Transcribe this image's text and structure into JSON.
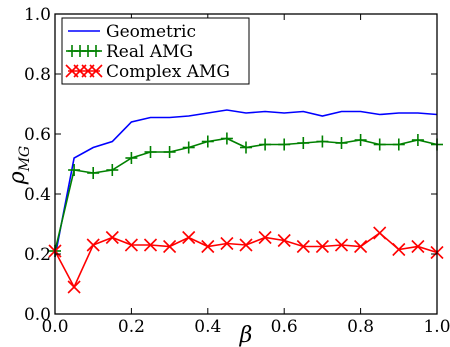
{
  "chart_data": {
    "type": "line",
    "x": [
      0.0,
      0.05,
      0.1,
      0.15,
      0.2,
      0.25,
      0.3,
      0.35,
      0.4,
      0.45,
      0.5,
      0.55,
      0.6,
      0.65,
      0.7,
      0.75,
      0.8,
      0.85,
      0.9,
      0.95,
      1.0
    ],
    "series": [
      {
        "name": "Geometric",
        "color": "#0000ff",
        "marker": "none",
        "values": [
          0.19,
          0.52,
          0.555,
          0.575,
          0.64,
          0.655,
          0.655,
          0.66,
          0.67,
          0.68,
          0.67,
          0.675,
          0.67,
          0.675,
          0.66,
          0.675,
          0.675,
          0.665,
          0.67,
          0.67,
          0.665
        ]
      },
      {
        "name": "Real AMG",
        "color": "#008000",
        "marker": "plus",
        "values": [
          0.21,
          0.48,
          0.47,
          0.48,
          0.52,
          0.54,
          0.54,
          0.555,
          0.575,
          0.585,
          0.555,
          0.565,
          0.565,
          0.57,
          0.575,
          0.57,
          0.58,
          0.565,
          0.565,
          0.58,
          0.565
        ]
      },
      {
        "name": "Complex AMG",
        "color": "#ff0000",
        "marker": "x",
        "values": [
          0.21,
          0.09,
          0.23,
          0.255,
          0.23,
          0.23,
          0.225,
          0.255,
          0.225,
          0.235,
          0.23,
          0.255,
          0.245,
          0.225,
          0.225,
          0.23,
          0.225,
          0.27,
          0.215,
          0.225,
          0.205
        ]
      }
    ],
    "xlabel": "β",
    "ylabel_main": "ρ",
    "ylabel_sub": "MG",
    "xlim": [
      0.0,
      1.0
    ],
    "ylim": [
      0.0,
      1.0
    ],
    "xticks": [
      "0.0",
      "0.2",
      "0.4",
      "0.6",
      "0.8",
      "1.0"
    ],
    "yticks": [
      "0.0",
      "0.2",
      "0.4",
      "0.6",
      "0.8",
      "1.0"
    ],
    "grid": false,
    "legend_position": "top-left"
  }
}
